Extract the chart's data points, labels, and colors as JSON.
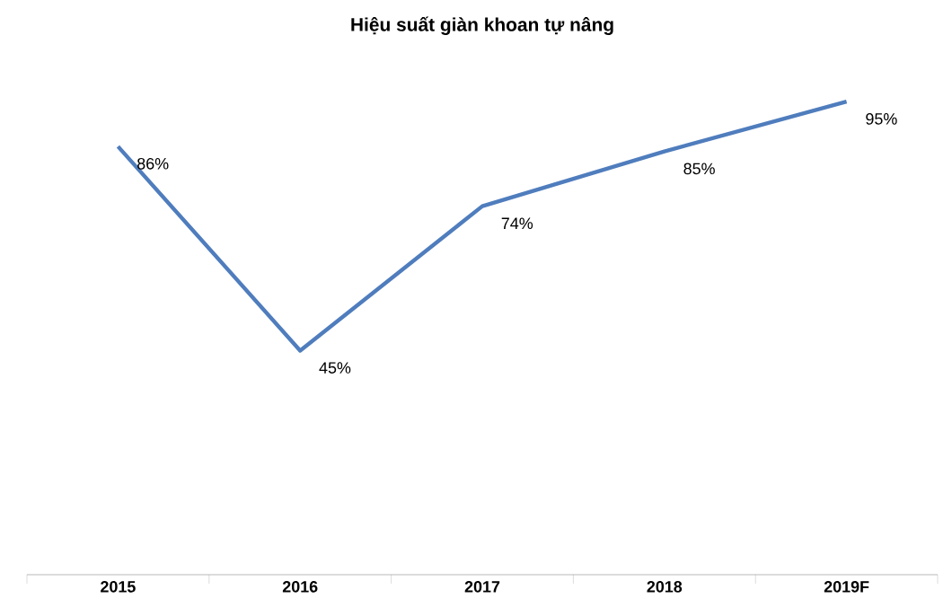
{
  "chart_data": {
    "type": "line",
    "title": "Hiệu suất giàn khoan tự nâng",
    "categories": [
      "2015",
      "2016",
      "2017",
      "2018",
      "2019F"
    ],
    "series": [
      {
        "color": "#4f7dbd",
        "values": [
          86,
          45,
          74,
          85,
          95
        ],
        "value_labels": [
          "86%",
          "45%",
          "74%",
          "85%",
          "95%"
        ]
      }
    ],
    "marker": "none",
    "line_style": "solid"
  }
}
